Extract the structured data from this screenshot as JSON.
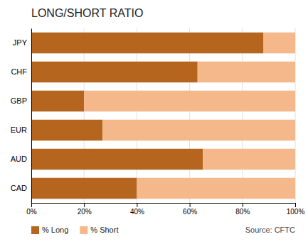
{
  "chart_data": {
    "type": "bar",
    "orientation": "horizontal",
    "stacked": true,
    "title": "LONG/SHORT RATIO",
    "categories": [
      "JPY",
      "CHF",
      "GBP",
      "EUR",
      "AUD",
      "CAD"
    ],
    "series": [
      {
        "name": "% Long",
        "color": "#B5651D",
        "values": [
          88,
          63,
          20,
          27,
          65,
          40
        ]
      },
      {
        "name": "% Short",
        "color": "#F4B88A",
        "values": [
          12,
          37,
          80,
          73,
          35,
          60
        ]
      }
    ],
    "xlim": [
      0,
      100
    ],
    "xticks": [
      {
        "value": 0,
        "label": "0%"
      },
      {
        "value": 20,
        "label": "20%"
      },
      {
        "value": 40,
        "label": "40%"
      },
      {
        "value": 60,
        "label": "60%"
      },
      {
        "value": 80,
        "label": "80%"
      },
      {
        "value": 100,
        "label": "100%"
      }
    ],
    "grid": true,
    "legend": "bottom",
    "annotations": [
      "Source: CFTC"
    ]
  }
}
